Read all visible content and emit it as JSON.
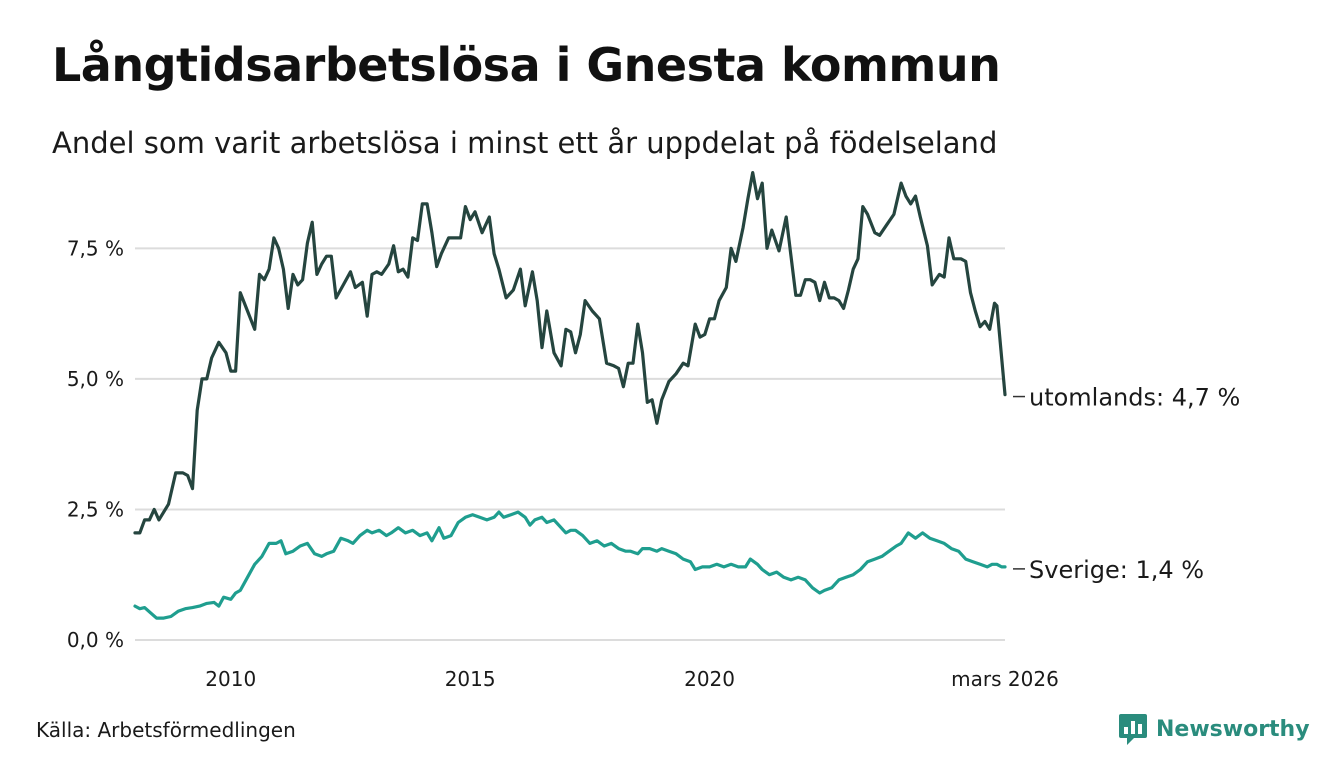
{
  "title": "Långtidsarbetslösa i Gnesta kommun",
  "subtitle": "Andel som varit arbetslösa i minst ett år uppdelat på födelseland",
  "source": "Källa: Arbetsförmedlingen",
  "brand": {
    "name": "Newsworthy",
    "icon": "newsworthy-logo-icon"
  },
  "colors": {
    "utomlands": "#25453f",
    "sverige": "#1f9e8f",
    "grid": "#dcdcdc"
  },
  "chart_data": {
    "type": "line",
    "title": "Långtidsarbetslösa i Gnesta kommun",
    "xlabel": "",
    "ylabel": "",
    "ylim": [
      0,
      9.0
    ],
    "xlim": [
      2008.0,
      2026.17
    ],
    "y_ticks": [
      {
        "value": 0,
        "label": "0,0 %"
      },
      {
        "value": 2.5,
        "label": "2,5 %"
      },
      {
        "value": 5,
        "label": "5,0 %"
      },
      {
        "value": 7.5,
        "label": "7,5 %"
      }
    ],
    "x_ticks": [
      {
        "value": 2010,
        "label": "2010"
      },
      {
        "value": 2015,
        "label": "2015"
      },
      {
        "value": 2020,
        "label": "2020"
      },
      {
        "value": 2026.17,
        "label": "mars 2026"
      }
    ],
    "grid": true,
    "series": [
      {
        "name": "utomlands",
        "end_label": "utomlands: 4,7 %",
        "color": "#25453f",
        "points": [
          [
            2008.0,
            2.05
          ],
          [
            2008.1,
            2.05
          ],
          [
            2008.2,
            2.3
          ],
          [
            2008.3,
            2.3
          ],
          [
            2008.4,
            2.5
          ],
          [
            2008.5,
            2.3
          ],
          [
            2008.7,
            2.6
          ],
          [
            2008.85,
            3.2
          ],
          [
            2009.0,
            3.2
          ],
          [
            2009.1,
            3.15
          ],
          [
            2009.2,
            2.9
          ],
          [
            2009.3,
            4.4
          ],
          [
            2009.4,
            5.0
          ],
          [
            2009.5,
            5.0
          ],
          [
            2009.6,
            5.4
          ],
          [
            2009.75,
            5.7
          ],
          [
            2009.9,
            5.5
          ],
          [
            2010.0,
            5.15
          ],
          [
            2010.1,
            5.15
          ],
          [
            2010.2,
            6.65
          ],
          [
            2010.35,
            6.3
          ],
          [
            2010.5,
            5.95
          ],
          [
            2010.6,
            7.0
          ],
          [
            2010.7,
            6.9
          ],
          [
            2010.8,
            7.1
          ],
          [
            2010.9,
            7.7
          ],
          [
            2011.0,
            7.5
          ],
          [
            2011.1,
            7.1
          ],
          [
            2011.2,
            6.35
          ],
          [
            2011.3,
            7.0
          ],
          [
            2011.4,
            6.8
          ],
          [
            2011.5,
            6.9
          ],
          [
            2011.6,
            7.6
          ],
          [
            2011.7,
            8.0
          ],
          [
            2011.8,
            7.0
          ],
          [
            2011.9,
            7.2
          ],
          [
            2012.0,
            7.35
          ],
          [
            2012.1,
            7.35
          ],
          [
            2012.2,
            6.55
          ],
          [
            2012.35,
            6.8
          ],
          [
            2012.5,
            7.05
          ],
          [
            2012.6,
            6.75
          ],
          [
            2012.75,
            6.85
          ],
          [
            2012.85,
            6.2
          ],
          [
            2012.95,
            7.0
          ],
          [
            2013.05,
            7.05
          ],
          [
            2013.15,
            7.0
          ],
          [
            2013.3,
            7.2
          ],
          [
            2013.4,
            7.55
          ],
          [
            2013.5,
            7.05
          ],
          [
            2013.6,
            7.1
          ],
          [
            2013.7,
            6.95
          ],
          [
            2013.8,
            7.7
          ],
          [
            2013.9,
            7.65
          ],
          [
            2014.0,
            8.35
          ],
          [
            2014.1,
            8.35
          ],
          [
            2014.2,
            7.8
          ],
          [
            2014.3,
            7.15
          ],
          [
            2014.4,
            7.4
          ],
          [
            2014.55,
            7.7
          ],
          [
            2014.7,
            7.7
          ],
          [
            2014.8,
            7.7
          ],
          [
            2014.9,
            8.3
          ],
          [
            2015.0,
            8.05
          ],
          [
            2015.1,
            8.2
          ],
          [
            2015.25,
            7.8
          ],
          [
            2015.4,
            8.1
          ],
          [
            2015.5,
            7.4
          ],
          [
            2015.6,
            7.1
          ],
          [
            2015.75,
            6.55
          ],
          [
            2015.9,
            6.7
          ],
          [
            2016.05,
            7.1
          ],
          [
            2016.15,
            6.4
          ],
          [
            2016.3,
            7.05
          ],
          [
            2016.4,
            6.5
          ],
          [
            2016.5,
            5.6
          ],
          [
            2016.6,
            6.3
          ],
          [
            2016.75,
            5.5
          ],
          [
            2016.9,
            5.25
          ],
          [
            2017.0,
            5.95
          ],
          [
            2017.1,
            5.9
          ],
          [
            2017.2,
            5.5
          ],
          [
            2017.3,
            5.85
          ],
          [
            2017.4,
            6.5
          ],
          [
            2017.55,
            6.3
          ],
          [
            2017.7,
            6.15
          ],
          [
            2017.85,
            5.3
          ],
          [
            2018.0,
            5.25
          ],
          [
            2018.1,
            5.2
          ],
          [
            2018.2,
            4.85
          ],
          [
            2018.3,
            5.3
          ],
          [
            2018.4,
            5.3
          ],
          [
            2018.5,
            6.05
          ],
          [
            2018.6,
            5.5
          ],
          [
            2018.7,
            4.55
          ],
          [
            2018.8,
            4.6
          ],
          [
            2018.9,
            4.15
          ],
          [
            2019.0,
            4.6
          ],
          [
            2019.15,
            4.95
          ],
          [
            2019.3,
            5.1
          ],
          [
            2019.45,
            5.3
          ],
          [
            2019.55,
            5.25
          ],
          [
            2019.7,
            6.05
          ],
          [
            2019.8,
            5.8
          ],
          [
            2019.9,
            5.85
          ],
          [
            2020.0,
            6.15
          ],
          [
            2020.1,
            6.15
          ],
          [
            2020.2,
            6.5
          ],
          [
            2020.35,
            6.75
          ],
          [
            2020.45,
            7.5
          ],
          [
            2020.55,
            7.25
          ],
          [
            2020.7,
            7.9
          ],
          [
            2020.8,
            8.45
          ],
          [
            2020.9,
            8.95
          ],
          [
            2021.0,
            8.45
          ],
          [
            2021.1,
            8.75
          ],
          [
            2021.2,
            7.5
          ],
          [
            2021.3,
            7.85
          ],
          [
            2021.45,
            7.45
          ],
          [
            2021.6,
            8.1
          ],
          [
            2021.7,
            7.35
          ],
          [
            2021.8,
            6.6
          ],
          [
            2021.9,
            6.6
          ],
          [
            2022.0,
            6.9
          ],
          [
            2022.1,
            6.9
          ],
          [
            2022.2,
            6.85
          ],
          [
            2022.3,
            6.5
          ],
          [
            2022.4,
            6.85
          ],
          [
            2022.5,
            6.55
          ],
          [
            2022.6,
            6.55
          ],
          [
            2022.7,
            6.5
          ],
          [
            2022.8,
            6.35
          ],
          [
            2022.9,
            6.7
          ],
          [
            2023.0,
            7.1
          ],
          [
            2023.1,
            7.3
          ],
          [
            2023.2,
            8.3
          ],
          [
            2023.3,
            8.15
          ],
          [
            2023.45,
            7.8
          ],
          [
            2023.55,
            7.75
          ],
          [
            2023.7,
            7.95
          ],
          [
            2023.85,
            8.15
          ],
          [
            2024.0,
            8.75
          ],
          [
            2024.1,
            8.5
          ],
          [
            2024.2,
            8.35
          ],
          [
            2024.3,
            8.5
          ],
          [
            2024.4,
            8.1
          ],
          [
            2024.55,
            7.55
          ],
          [
            2024.65,
            6.8
          ],
          [
            2024.8,
            7.0
          ],
          [
            2024.9,
            6.95
          ],
          [
            2025.0,
            7.7
          ],
          [
            2025.1,
            7.3
          ],
          [
            2025.25,
            7.3
          ],
          [
            2025.35,
            7.25
          ],
          [
            2025.45,
            6.65
          ],
          [
            2025.55,
            6.3
          ],
          [
            2025.65,
            6.0
          ],
          [
            2025.75,
            6.1
          ],
          [
            2025.85,
            5.95
          ],
          [
            2025.95,
            6.45
          ],
          [
            2026.0,
            6.4
          ],
          [
            2026.17,
            4.7
          ]
        ]
      },
      {
        "name": "Sverige",
        "end_label": "Sverige: 1,4 %",
        "color": "#1f9e8f",
        "points": [
          [
            2008.0,
            0.65
          ],
          [
            2008.1,
            0.6
          ],
          [
            2008.2,
            0.62
          ],
          [
            2008.35,
            0.5
          ],
          [
            2008.45,
            0.42
          ],
          [
            2008.6,
            0.42
          ],
          [
            2008.75,
            0.45
          ],
          [
            2008.9,
            0.55
          ],
          [
            2009.05,
            0.6
          ],
          [
            2009.2,
            0.62
          ],
          [
            2009.35,
            0.65
          ],
          [
            2009.5,
            0.7
          ],
          [
            2009.65,
            0.72
          ],
          [
            2009.75,
            0.65
          ],
          [
            2009.85,
            0.82
          ],
          [
            2010.0,
            0.78
          ],
          [
            2010.1,
            0.9
          ],
          [
            2010.2,
            0.95
          ],
          [
            2010.35,
            1.2
          ],
          [
            2010.5,
            1.45
          ],
          [
            2010.65,
            1.6
          ],
          [
            2010.8,
            1.85
          ],
          [
            2010.95,
            1.85
          ],
          [
            2011.05,
            1.9
          ],
          [
            2011.15,
            1.65
          ],
          [
            2011.3,
            1.7
          ],
          [
            2011.45,
            1.8
          ],
          [
            2011.6,
            1.85
          ],
          [
            2011.75,
            1.65
          ],
          [
            2011.9,
            1.6
          ],
          [
            2012.0,
            1.65
          ],
          [
            2012.15,
            1.7
          ],
          [
            2012.3,
            1.95
          ],
          [
            2012.45,
            1.9
          ],
          [
            2012.55,
            1.85
          ],
          [
            2012.7,
            2.0
          ],
          [
            2012.85,
            2.1
          ],
          [
            2012.95,
            2.05
          ],
          [
            2013.1,
            2.1
          ],
          [
            2013.25,
            2.0
          ],
          [
            2013.35,
            2.05
          ],
          [
            2013.5,
            2.15
          ],
          [
            2013.65,
            2.05
          ],
          [
            2013.8,
            2.1
          ],
          [
            2013.95,
            2.0
          ],
          [
            2014.1,
            2.05
          ],
          [
            2014.2,
            1.9
          ],
          [
            2014.35,
            2.15
          ],
          [
            2014.45,
            1.95
          ],
          [
            2014.6,
            2.0
          ],
          [
            2014.75,
            2.25
          ],
          [
            2014.9,
            2.35
          ],
          [
            2015.05,
            2.4
          ],
          [
            2015.2,
            2.35
          ],
          [
            2015.35,
            2.3
          ],
          [
            2015.5,
            2.35
          ],
          [
            2015.6,
            2.45
          ],
          [
            2015.7,
            2.35
          ],
          [
            2015.85,
            2.4
          ],
          [
            2016.0,
            2.45
          ],
          [
            2016.15,
            2.35
          ],
          [
            2016.25,
            2.2
          ],
          [
            2016.35,
            2.3
          ],
          [
            2016.5,
            2.35
          ],
          [
            2016.6,
            2.25
          ],
          [
            2016.75,
            2.3
          ],
          [
            2016.9,
            2.15
          ],
          [
            2017.0,
            2.05
          ],
          [
            2017.1,
            2.1
          ],
          [
            2017.2,
            2.1
          ],
          [
            2017.35,
            2.0
          ],
          [
            2017.5,
            1.85
          ],
          [
            2017.65,
            1.9
          ],
          [
            2017.8,
            1.8
          ],
          [
            2017.95,
            1.85
          ],
          [
            2018.1,
            1.75
          ],
          [
            2018.25,
            1.7
          ],
          [
            2018.35,
            1.7
          ],
          [
            2018.5,
            1.65
          ],
          [
            2018.6,
            1.75
          ],
          [
            2018.75,
            1.75
          ],
          [
            2018.9,
            1.7
          ],
          [
            2019.0,
            1.75
          ],
          [
            2019.15,
            1.7
          ],
          [
            2019.3,
            1.65
          ],
          [
            2019.45,
            1.55
          ],
          [
            2019.6,
            1.5
          ],
          [
            2019.7,
            1.35
          ],
          [
            2019.85,
            1.4
          ],
          [
            2020.0,
            1.4
          ],
          [
            2020.15,
            1.45
          ],
          [
            2020.3,
            1.4
          ],
          [
            2020.45,
            1.45
          ],
          [
            2020.6,
            1.4
          ],
          [
            2020.75,
            1.4
          ],
          [
            2020.85,
            1.55
          ],
          [
            2021.0,
            1.45
          ],
          [
            2021.1,
            1.35
          ],
          [
            2021.25,
            1.25
          ],
          [
            2021.4,
            1.3
          ],
          [
            2021.55,
            1.2
          ],
          [
            2021.7,
            1.15
          ],
          [
            2021.85,
            1.2
          ],
          [
            2022.0,
            1.15
          ],
          [
            2022.15,
            1.0
          ],
          [
            2022.3,
            0.9
          ],
          [
            2022.4,
            0.95
          ],
          [
            2022.55,
            1.0
          ],
          [
            2022.7,
            1.15
          ],
          [
            2022.85,
            1.2
          ],
          [
            2023.0,
            1.25
          ],
          [
            2023.15,
            1.35
          ],
          [
            2023.3,
            1.5
          ],
          [
            2023.45,
            1.55
          ],
          [
            2023.6,
            1.6
          ],
          [
            2023.75,
            1.7
          ],
          [
            2023.9,
            1.8
          ],
          [
            2024.0,
            1.85
          ],
          [
            2024.15,
            2.05
          ],
          [
            2024.3,
            1.95
          ],
          [
            2024.45,
            2.05
          ],
          [
            2024.6,
            1.95
          ],
          [
            2024.75,
            1.9
          ],
          [
            2024.9,
            1.85
          ],
          [
            2025.05,
            1.75
          ],
          [
            2025.2,
            1.7
          ],
          [
            2025.35,
            1.55
          ],
          [
            2025.5,
            1.5
          ],
          [
            2025.65,
            1.45
          ],
          [
            2025.8,
            1.4
          ],
          [
            2025.9,
            1.45
          ],
          [
            2026.0,
            1.45
          ],
          [
            2026.1,
            1.4
          ],
          [
            2026.17,
            1.4
          ]
        ]
      }
    ]
  }
}
